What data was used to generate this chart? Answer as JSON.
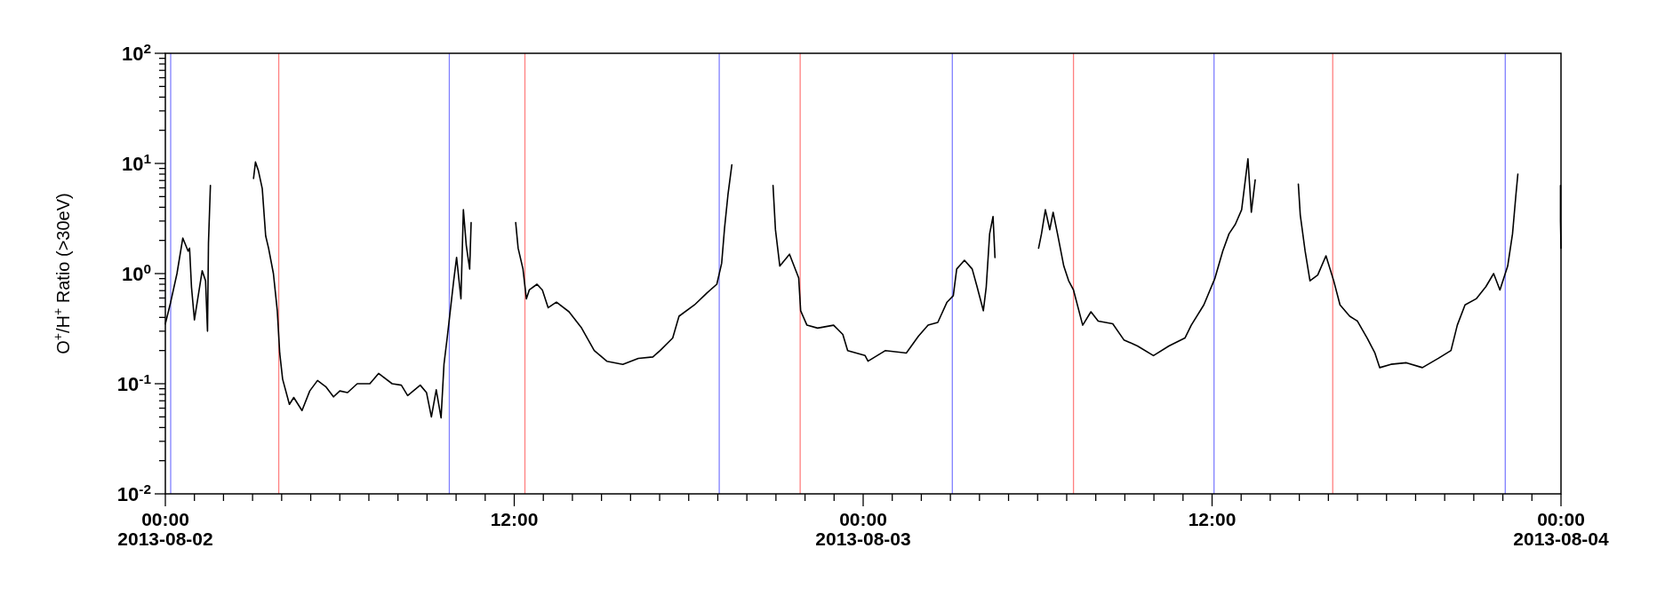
{
  "chart_data": {
    "type": "line",
    "ylabel": "O$^{+}$/H$^{+}$ Ratio (>30eV)",
    "log": "y",
    "line_style": "solid",
    "xlim": [
      "2013-08-02T00:00",
      "2013-08-04T00:00"
    ],
    "ylim": [
      0.01,
      100
    ],
    "xticks": [
      {
        "value": "2013-08-02T00:00",
        "label": "00:00\n2013-08-02"
      },
      {
        "value": "2013-08-02T01:00",
        "label": null
      },
      {
        "value": "2013-08-02T02:00",
        "label": null
      },
      {
        "value": "2013-08-02T03:00",
        "label": null
      },
      {
        "value": "2013-08-02T04:00",
        "label": null
      },
      {
        "value": "2013-08-02T05:00",
        "label": null
      },
      {
        "value": "2013-08-02T06:00",
        "label": null
      },
      {
        "value": "2013-08-02T07:00",
        "label": null
      },
      {
        "value": "2013-08-02T08:00",
        "label": null
      },
      {
        "value": "2013-08-02T09:00",
        "label": null
      },
      {
        "value": "2013-08-02T10:00",
        "label": null
      },
      {
        "value": "2013-08-02T11:00",
        "label": null
      },
      {
        "value": "2013-08-02T12:00",
        "label": "12:00"
      },
      {
        "value": "2013-08-02T13:00",
        "label": null
      },
      {
        "value": "2013-08-02T14:00",
        "label": null
      },
      {
        "value": "2013-08-02T15:00",
        "label": null
      },
      {
        "value": "2013-08-02T16:00",
        "label": null
      },
      {
        "value": "2013-08-02T17:00",
        "label": null
      },
      {
        "value": "2013-08-02T18:00",
        "label": null
      },
      {
        "value": "2013-08-02T19:00",
        "label": null
      },
      {
        "value": "2013-08-02T20:00",
        "label": null
      },
      {
        "value": "2013-08-02T21:00",
        "label": null
      },
      {
        "value": "2013-08-02T22:00",
        "label": null
      },
      {
        "value": "2013-08-02T23:00",
        "label": null
      },
      {
        "value": "2013-08-03T00:00",
        "label": "00:00\n2013-08-03"
      },
      {
        "value": "2013-08-03T01:00",
        "label": null
      },
      {
        "value": "2013-08-03T02:00",
        "label": null
      },
      {
        "value": "2013-08-03T03:00",
        "label": null
      },
      {
        "value": "2013-08-03T04:00",
        "label": null
      },
      {
        "value": "2013-08-03T05:00",
        "label": null
      },
      {
        "value": "2013-08-03T06:00",
        "label": null
      },
      {
        "value": "2013-08-03T07:00",
        "label": null
      },
      {
        "value": "2013-08-03T08:00",
        "label": null
      },
      {
        "value": "2013-08-03T09:00",
        "label": null
      },
      {
        "value": "2013-08-03T10:00",
        "label": null
      },
      {
        "value": "2013-08-03T11:00",
        "label": null
      },
      {
        "value": "2013-08-03T12:00",
        "label": "12:00"
      },
      {
        "value": "2013-08-03T13:00",
        "label": null
      },
      {
        "value": "2013-08-03T14:00",
        "label": null
      },
      {
        "value": "2013-08-03T15:00",
        "label": null
      },
      {
        "value": "2013-08-03T16:00",
        "label": null
      },
      {
        "value": "2013-08-03T17:00",
        "label": null
      },
      {
        "value": "2013-08-03T18:00",
        "label": null
      },
      {
        "value": "2013-08-03T19:00",
        "label": null
      },
      {
        "value": "2013-08-03T20:00",
        "label": null
      },
      {
        "value": "2013-08-03T21:00",
        "label": null
      },
      {
        "value": "2013-08-03T22:00",
        "label": null
      },
      {
        "value": "2013-08-03T23:00",
        "label": null
      },
      {
        "value": "2013-08-04T00:00",
        "label": "00:00\n2013-08-04"
      }
    ],
    "yticks": [
      {
        "value": 0.01,
        "label": "10$^{-2}$"
      },
      {
        "value": 0.02,
        "label": null
      },
      {
        "value": 0.03,
        "label": null
      },
      {
        "value": 0.04,
        "label": null
      },
      {
        "value": 0.05,
        "label": null
      },
      {
        "value": 0.06,
        "label": null
      },
      {
        "value": 0.07,
        "label": null
      },
      {
        "value": 0.08,
        "label": null
      },
      {
        "value": 0.09,
        "label": null
      },
      {
        "value": 0.1,
        "label": "10$^{-1}$"
      },
      {
        "value": 0.2,
        "label": null
      },
      {
        "value": 0.3,
        "label": null
      },
      {
        "value": 0.4,
        "label": null
      },
      {
        "value": 0.5,
        "label": null
      },
      {
        "value": 0.6,
        "label": null
      },
      {
        "value": 0.7,
        "label": null
      },
      {
        "value": 0.8,
        "label": null
      },
      {
        "value": 0.9,
        "label": null
      },
      {
        "value": 1,
        "label": "10$^{0}$"
      },
      {
        "value": 2,
        "label": null
      },
      {
        "value": 3,
        "label": null
      },
      {
        "value": 4,
        "label": null
      },
      {
        "value": 5,
        "label": null
      },
      {
        "value": 6,
        "label": null
      },
      {
        "value": 7,
        "label": null
      },
      {
        "value": 8,
        "label": null
      },
      {
        "value": 9,
        "label": null
      },
      {
        "value": 10,
        "label": "10$^{1}$"
      },
      {
        "value": 20,
        "label": null
      },
      {
        "value": 30,
        "label": null
      },
      {
        "value": 40,
        "label": null
      },
      {
        "value": 50,
        "label": null
      },
      {
        "value": 60,
        "label": null
      },
      {
        "value": 70,
        "label": null
      },
      {
        "value": 80,
        "label": null
      },
      {
        "value": 90,
        "label": null
      },
      {
        "value": 100,
        "label": "10$^{2}$"
      }
    ],
    "ref_lines": [
      {
        "axis": "x",
        "value": "2013-08-02T00:11",
        "label": null,
        "color": "#8080ff"
      },
      {
        "axis": "x",
        "value": "2013-08-02T09:46",
        "label": null,
        "color": "#8080ff"
      },
      {
        "axis": "x",
        "value": "2013-08-02T19:03",
        "label": null,
        "color": "#8080ff"
      },
      {
        "axis": "x",
        "value": "2013-08-03T03:04",
        "label": null,
        "color": "#8080ff"
      },
      {
        "axis": "x",
        "value": "2013-08-03T12:04",
        "label": null,
        "color": "#8080ff"
      },
      {
        "axis": "x",
        "value": "2013-08-03T22:05",
        "label": null,
        "color": "#8080ff"
      },
      {
        "axis": "x",
        "value": "2013-08-02T03:54",
        "label": null,
        "color": "#ff8080"
      },
      {
        "axis": "x",
        "value": "2013-08-02T12:22",
        "label": null,
        "color": "#ff8080"
      },
      {
        "axis": "x",
        "value": "2013-08-02T21:50",
        "label": null,
        "color": "#ff8080"
      },
      {
        "axis": "x",
        "value": "2013-08-03T07:14",
        "label": null,
        "color": "#ff8080"
      },
      {
        "axis": "x",
        "value": "2013-08-03T16:09",
        "label": null,
        "color": "#ff8080"
      }
    ],
    "series": [
      {
        "color": "#000000",
        "x": [
          "2013-08-02T00:00",
          "2013-08-02T00:11",
          "2013-08-02T00:24",
          "2013-08-02T00:36",
          "2013-08-02T00:47",
          "2013-08-02T00:50",
          "2013-08-02T00:54",
          "2013-08-02T01:00",
          "2013-08-02T01:16",
          "2013-08-02T01:23",
          "2013-08-02T01:27",
          "2013-08-02T01:29",
          "2013-08-02T01:33",
          "2013-08-02T02:18",
          "2013-08-02T03:02",
          "2013-08-02T03:06",
          "2013-08-02T03:12",
          "2013-08-02T03:20",
          "2013-08-02T03:27",
          "2013-08-02T03:33",
          "2013-08-02T03:43",
          "2013-08-02T03:51",
          "2013-08-02T03:56",
          "2013-08-02T04:02",
          "2013-08-02T04:16",
          "2013-08-02T04:25",
          "2013-08-02T04:42",
          "2013-08-02T04:58",
          "2013-08-02T05:14",
          "2013-08-02T05:31",
          "2013-08-02T05:47",
          "2013-08-02T06:00",
          "2013-08-02T06:16",
          "2013-08-02T06:36",
          "2013-08-02T07:02",
          "2013-08-02T07:20",
          "2013-08-02T07:48",
          "2013-08-02T08:07",
          "2013-08-02T08:20",
          "2013-08-02T08:46",
          "2013-08-02T08:59",
          "2013-08-02T09:09",
          "2013-08-02T09:19",
          "2013-08-02T09:29",
          "2013-08-02T09:35",
          "2013-08-02T09:42",
          "2013-08-02T09:48",
          "2013-08-02T09:55",
          "2013-08-02T10:01",
          "2013-08-02T10:10",
          "2013-08-02T10:15",
          "2013-08-02T10:21",
          "2013-08-02T10:28",
          "2013-08-02T10:31",
          "2013-08-02T11:18",
          "2013-08-02T12:03",
          "2013-08-02T12:08",
          "2013-08-02T12:18",
          "2013-08-02T12:25",
          "2013-08-02T12:31",
          "2013-08-02T12:47",
          "2013-08-02T12:58",
          "2013-08-02T13:10",
          "2013-08-02T13:27",
          "2013-08-02T13:53",
          "2013-08-02T14:19",
          "2013-08-02T14:45",
          "2013-08-02T15:11",
          "2013-08-02T15:44",
          "2013-08-02T16:16",
          "2013-08-02T16:46",
          "2013-08-02T17:01",
          "2013-08-02T17:27",
          "2013-08-02T17:40",
          "2013-08-02T18:12",
          "2013-08-02T18:38",
          "2013-08-02T18:58",
          "2013-08-02T19:08",
          "2013-08-02T19:14",
          "2013-08-02T19:21",
          "2013-08-02T19:29",
          "2013-08-02T20:12",
          "2013-08-02T20:54",
          "2013-08-02T20:59",
          "2013-08-02T21:08",
          "2013-08-02T21:28",
          "2013-08-02T21:47",
          "2013-08-02T21:51",
          "2013-08-02T22:04",
          "2013-08-02T22:26",
          "2013-08-02T22:59",
          "2013-08-02T23:18",
          "2013-08-02T23:28",
          "2013-08-03T00:04",
          "2013-08-03T00:10",
          "2013-08-03T00:46",
          "2013-08-03T01:29",
          "2013-08-03T01:54",
          "2013-08-03T02:14",
          "2013-08-03T02:34",
          "2013-08-03T02:53",
          "2013-08-03T03:06",
          "2013-08-03T03:13",
          "2013-08-03T03:29",
          "2013-08-03T03:45",
          "2013-08-03T03:55",
          "2013-08-03T04:08",
          "2013-08-03T04:14",
          "2013-08-03T04:21",
          "2013-08-03T04:28",
          "2013-08-03T04:32",
          "2013-08-03T05:18",
          "2013-08-03T06:02",
          "2013-08-03T06:08",
          "2013-08-03T06:16",
          "2013-08-03T06:25",
          "2013-08-03T06:32",
          "2013-08-03T06:41",
          "2013-08-03T06:54",
          "2013-08-03T07:04",
          "2013-08-03T07:14",
          "2013-08-03T07:33",
          "2013-08-03T07:50",
          "2013-08-03T08:05",
          "2013-08-03T08:35",
          "2013-08-03T08:58",
          "2013-08-03T09:26",
          "2013-08-03T09:59",
          "2013-08-03T10:31",
          "2013-08-03T11:04",
          "2013-08-03T11:17",
          "2013-08-03T11:43",
          "2013-08-03T12:06",
          "2013-08-03T12:22",
          "2013-08-03T12:35",
          "2013-08-03T12:48",
          "2013-08-03T13:01",
          "2013-08-03T13:14",
          "2013-08-03T13:21",
          "2013-08-03T13:29",
          "2013-08-03T14:12",
          "2013-08-03T14:58",
          "2013-08-03T15:02",
          "2013-08-03T15:12",
          "2013-08-03T15:22",
          "2013-08-03T15:38",
          "2013-08-03T15:55",
          "2013-08-03T16:11",
          "2013-08-03T16:24",
          "2013-08-03T16:44",
          "2013-08-03T17:00",
          "2013-08-03T17:20",
          "2013-08-03T17:36",
          "2013-08-03T17:46",
          "2013-08-03T18:09",
          "2013-08-03T18:41",
          "2013-08-03T19:14",
          "2013-08-03T19:47",
          "2013-08-03T20:13",
          "2013-08-03T20:26",
          "2013-08-03T20:42",
          "2013-08-03T21:05",
          "2013-08-03T21:25",
          "2013-08-03T21:41",
          "2013-08-03T21:54",
          "2013-08-03T22:10",
          "2013-08-03T22:20",
          "2013-08-03T22:27",
          "2013-08-03T22:31",
          "2013-08-03T23:18",
          "2013-08-03T23:59",
          "2013-08-03T23:59",
          "2013-08-04T00:00"
        ],
        "values": [
          0.35,
          0.55,
          1.0,
          2.1,
          1.6,
          1.7,
          0.75,
          0.38,
          1.06,
          0.86,
          0.3,
          1.9,
          6.3,
          null,
          7.3,
          10.3,
          8.6,
          5.9,
          2.2,
          1.7,
          1.0,
          0.46,
          0.19,
          0.11,
          0.065,
          0.075,
          0.057,
          0.086,
          0.107,
          0.094,
          0.076,
          0.086,
          0.083,
          0.1,
          0.1,
          0.124,
          0.1,
          0.097,
          0.078,
          0.097,
          0.083,
          0.05,
          0.088,
          0.049,
          0.15,
          0.27,
          0.46,
          0.86,
          1.4,
          0.59,
          3.8,
          1.8,
          1.1,
          2.9,
          null,
          2.9,
          1.7,
          1.1,
          0.59,
          0.71,
          0.8,
          0.71,
          0.49,
          0.55,
          0.45,
          0.32,
          0.2,
          0.16,
          0.15,
          0.17,
          0.175,
          0.2,
          0.26,
          0.41,
          0.52,
          0.67,
          0.8,
          1.24,
          2.6,
          5.2,
          9.7,
          null,
          6.3,
          2.5,
          1.17,
          1.5,
          0.91,
          0.46,
          0.34,
          0.32,
          0.34,
          0.28,
          0.2,
          0.18,
          0.16,
          0.2,
          0.19,
          0.27,
          0.34,
          0.36,
          0.55,
          0.63,
          1.1,
          1.32,
          1.1,
          0.76,
          0.46,
          0.76,
          2.3,
          3.3,
          1.4,
          null,
          1.7,
          2.3,
          3.8,
          2.5,
          3.6,
          2.3,
          1.17,
          0.86,
          0.71,
          0.34,
          0.45,
          0.37,
          0.35,
          0.25,
          0.22,
          0.18,
          0.22,
          0.26,
          0.34,
          0.52,
          0.91,
          1.6,
          2.3,
          2.8,
          3.8,
          11,
          3.6,
          7.1,
          null,
          6.5,
          3.4,
          1.6,
          0.86,
          0.97,
          1.45,
          0.86,
          0.52,
          0.41,
          0.37,
          0.26,
          0.19,
          0.14,
          0.15,
          0.155,
          0.14,
          0.17,
          0.2,
          0.34,
          0.52,
          0.59,
          0.76,
          1.0,
          0.71,
          1.17,
          2.3,
          5.2,
          8.0,
          null,
          6.3,
          3.0,
          1.7
        ]
      }
    ]
  }
}
